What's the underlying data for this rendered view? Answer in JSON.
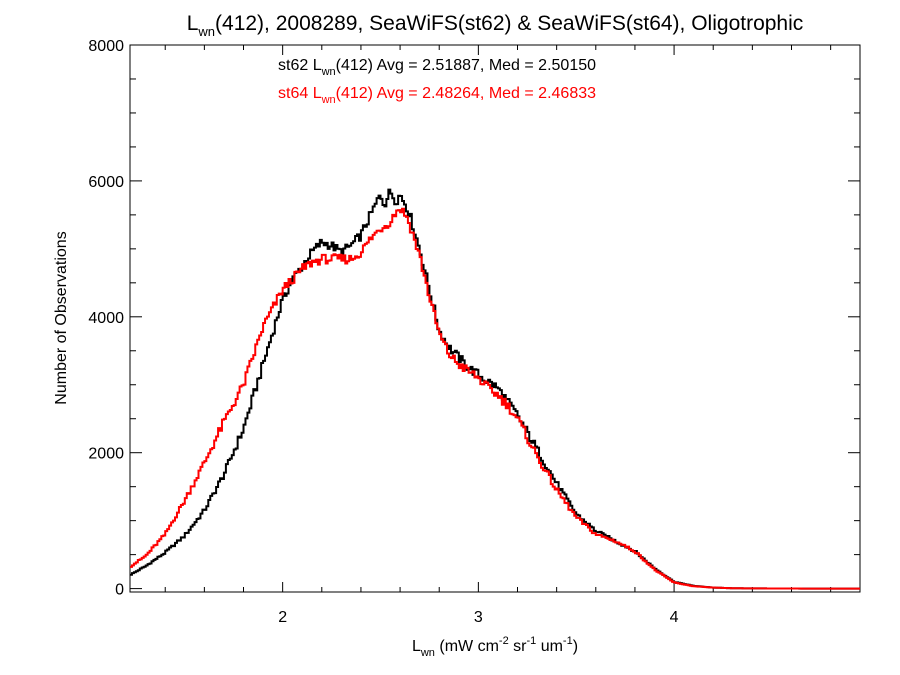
{
  "chart_data": {
    "type": "line",
    "title": {
      "main": "L",
      "sub": "wn",
      "rest": "(412), 2008289, SeaWiFS(st62) & SeaWiFS(st64), Oligotrophic"
    },
    "xlabel": {
      "main": "L",
      "sub": "wn",
      "p1": " (mW cm",
      "sup1": "-2",
      "p2": " sr",
      "sup2": "-1",
      "p3": " um",
      "sup3": "-1",
      "p4": ")"
    },
    "ylabel": "Number of Observations",
    "xlim": [
      1.22,
      4.95
    ],
    "ylim": [
      -50,
      8000
    ],
    "xticks": [
      2,
      3,
      4
    ],
    "yticks": [
      0,
      2000,
      4000,
      6000,
      8000
    ],
    "grid": false,
    "plot_style": "step",
    "annotations": [
      {
        "prefix": "st62 L",
        "sub": "wn",
        "suffix": "(412) Avg = 2.51887, Med = 2.50150",
        "color": "#000000"
      },
      {
        "prefix": "st64 L",
        "sub": "wn",
        "suffix": "(412) Avg = 2.48264, Med = 2.46833",
        "color": "#ff0000"
      }
    ],
    "series": [
      {
        "color": "#000000",
        "x": [
          1.22,
          1.3,
          1.4,
          1.5,
          1.6,
          1.7,
          1.8,
          1.9,
          2.0,
          2.05,
          2.1,
          2.15,
          2.2,
          2.25,
          2.3,
          2.35,
          2.4,
          2.45,
          2.5,
          2.52,
          2.55,
          2.58,
          2.6,
          2.63,
          2.65,
          2.7,
          2.75,
          2.8,
          2.85,
          2.9,
          2.95,
          3.0,
          3.05,
          3.1,
          3.15,
          3.2,
          3.3,
          3.4,
          3.5,
          3.6,
          3.7,
          3.8,
          3.9,
          4.0,
          4.1,
          4.2,
          4.3,
          4.5,
          4.7,
          4.95
        ],
        "y": [
          200,
          330,
          530,
          780,
          1150,
          1680,
          2350,
          3300,
          4250,
          4550,
          4750,
          4950,
          5100,
          5050,
          4950,
          5050,
          5200,
          5500,
          5800,
          5650,
          5850,
          5700,
          5800,
          5650,
          5500,
          5000,
          4400,
          3800,
          3550,
          3400,
          3250,
          3150,
          3050,
          2950,
          2750,
          2550,
          2050,
          1550,
          1100,
          850,
          700,
          550,
          300,
          100,
          40,
          15,
          5,
          2,
          0,
          0
        ]
      },
      {
        "color": "#ff0000",
        "x": [
          1.22,
          1.3,
          1.4,
          1.5,
          1.6,
          1.7,
          1.8,
          1.9,
          2.0,
          2.05,
          2.1,
          2.15,
          2.2,
          2.25,
          2.3,
          2.35,
          2.4,
          2.45,
          2.5,
          2.55,
          2.58,
          2.6,
          2.63,
          2.65,
          2.7,
          2.75,
          2.8,
          2.85,
          2.9,
          2.95,
          3.0,
          3.05,
          3.1,
          3.15,
          3.2,
          3.3,
          3.4,
          3.5,
          3.6,
          3.7,
          3.8,
          3.9,
          4.0,
          4.1,
          4.2,
          4.3,
          4.5,
          4.7,
          4.95
        ],
        "y": [
          320,
          480,
          800,
          1300,
          1850,
          2450,
          3000,
          3850,
          4400,
          4550,
          4700,
          4800,
          4850,
          4850,
          4850,
          4850,
          4950,
          5150,
          5300,
          5400,
          5550,
          5600,
          5500,
          5350,
          4900,
          4300,
          3750,
          3450,
          3300,
          3200,
          3100,
          2950,
          2850,
          2700,
          2500,
          1950,
          1450,
          1050,
          800,
          700,
          550,
          280,
          90,
          35,
          15,
          5,
          2,
          0,
          0
        ]
      }
    ]
  }
}
